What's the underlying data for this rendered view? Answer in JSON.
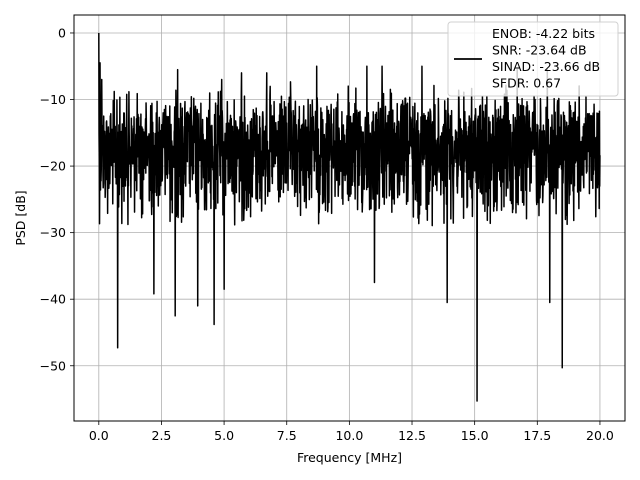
{
  "chart_data": {
    "type": "line",
    "xlabel": "Frequency [MHz]",
    "ylabel": "PSD [dB]",
    "xlim": [
      -0.99,
      21.0
    ],
    "ylim": [
      -58.3,
      2.7
    ],
    "xticks": [
      0.0,
      2.5,
      5.0,
      7.5,
      10.0,
      12.5,
      15.0,
      17.5,
      20.0
    ],
    "xtick_labels": [
      "0.0",
      "2.5",
      "5.0",
      "7.5",
      "10.0",
      "12.5",
      "15.0",
      "17.5",
      "20.0"
    ],
    "yticks": [
      0,
      -10,
      -20,
      -30,
      -40,
      -50
    ],
    "ytick_labels": [
      "0",
      "−10",
      "−20",
      "−30",
      "−40",
      "−50"
    ],
    "grid": true,
    "legend_position": "top-right",
    "series": [
      {
        "name": "ENOB: -4.22 bits\nSNR: -23.64 dB\nSINAD: -23.66 dB\nSFDR: 0.67",
        "color": "#000000",
        "x_range": [
          0.0,
          20.0
        ],
        "points": 2048,
        "y_typical_range": [
          -25,
          -8
        ],
        "peaks": [
          {
            "x": 0.0,
            "y": 0.0
          },
          {
            "x": 0.05,
            "y": -4.5
          },
          {
            "x": 0.12,
            "y": -7.0
          },
          {
            "x": 3.15,
            "y": -5.5
          },
          {
            "x": 4.9,
            "y": -7.0
          },
          {
            "x": 5.7,
            "y": -6.0
          },
          {
            "x": 6.7,
            "y": -6.0
          },
          {
            "x": 8.7,
            "y": -5.0
          },
          {
            "x": 10.7,
            "y": -5.0
          },
          {
            "x": 11.3,
            "y": -5.0
          },
          {
            "x": 12.9,
            "y": -5.0
          },
          {
            "x": 16.7,
            "y": -5.5
          },
          {
            "x": 17.9,
            "y": -5.5
          }
        ],
        "dips": [
          {
            "x": 0.75,
            "y": -47.3
          },
          {
            "x": 2.2,
            "y": -39.2
          },
          {
            "x": 3.05,
            "y": -42.5
          },
          {
            "x": 3.95,
            "y": -41.0
          },
          {
            "x": 4.6,
            "y": -43.8
          },
          {
            "x": 5.0,
            "y": -38.5
          },
          {
            "x": 11.0,
            "y": -37.5
          },
          {
            "x": 13.9,
            "y": -40.5
          },
          {
            "x": 15.1,
            "y": -55.3
          },
          {
            "x": 18.0,
            "y": -40.5
          },
          {
            "x": 18.5,
            "y": -50.3
          }
        ]
      }
    ]
  }
}
